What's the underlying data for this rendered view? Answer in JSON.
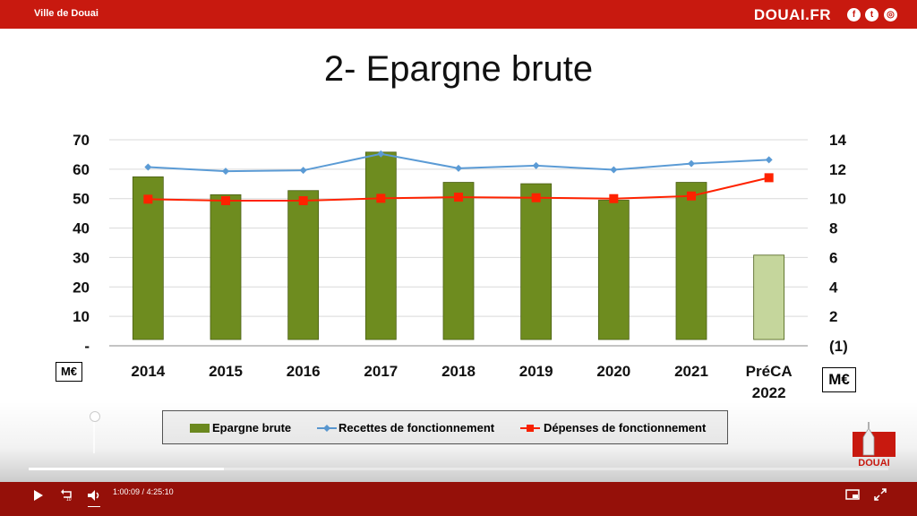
{
  "header": {
    "site_name": "Ville de Douai",
    "brand": "DOUAI.FR",
    "social_icons": [
      "facebook-icon",
      "twitter-icon",
      "instagram-icon"
    ]
  },
  "slide": {
    "title": "2- Epargne brute",
    "left_unit": "M€",
    "right_unit": "M€"
  },
  "chart_data": {
    "type": "bar",
    "categories": [
      "2014",
      "2015",
      "2016",
      "2017",
      "2018",
      "2019",
      "2020",
      "2021",
      "PréCA 2022"
    ],
    "left_axis": {
      "ylim": [
        0,
        70
      ],
      "ticks": [
        "-",
        "10",
        "20",
        "30",
        "40",
        "50",
        "60",
        "70"
      ]
    },
    "right_axis": {
      "ylim": [
        -1,
        14
      ],
      "ticks": [
        "(1)",
        "2",
        "4",
        "6",
        "8",
        "10",
        "12",
        "14"
      ]
    },
    "series": [
      {
        "name": "Epargne brute",
        "type": "bar",
        "axis": "right",
        "color": "#6e8c1f",
        "last_color": "#c5d69c",
        "values": [
          11.3,
          10.0,
          10.3,
          13.1,
          10.9,
          10.8,
          9.6,
          10.9,
          5.6
        ]
      },
      {
        "name": "Recettes de fonctionnement",
        "type": "line",
        "axis": "left",
        "color": "#5b9bd5",
        "marker": "diamond",
        "values": [
          60.7,
          59.3,
          59.6,
          65.2,
          60.3,
          61.2,
          59.8,
          61.9,
          63.2
        ]
      },
      {
        "name": "Dépenses de fonctionnement",
        "type": "line",
        "axis": "left",
        "color": "#ff2200",
        "marker": "square",
        "values": [
          49.8,
          49.3,
          49.3,
          50.1,
          50.5,
          50.3,
          50.0,
          50.9,
          57.1
        ]
      }
    ],
    "grid": true,
    "legend_position": "bottom"
  },
  "legend": {
    "bar_label": "Epargne brute",
    "line1_label": "Recettes de fonctionnement",
    "line2_label": "Dépenses de fonctionnement"
  },
  "player": {
    "current_time": "1:00:09",
    "separator": "/",
    "duration": "4:25:10",
    "progress": 0.2266,
    "logo_text": "DOUAI"
  }
}
